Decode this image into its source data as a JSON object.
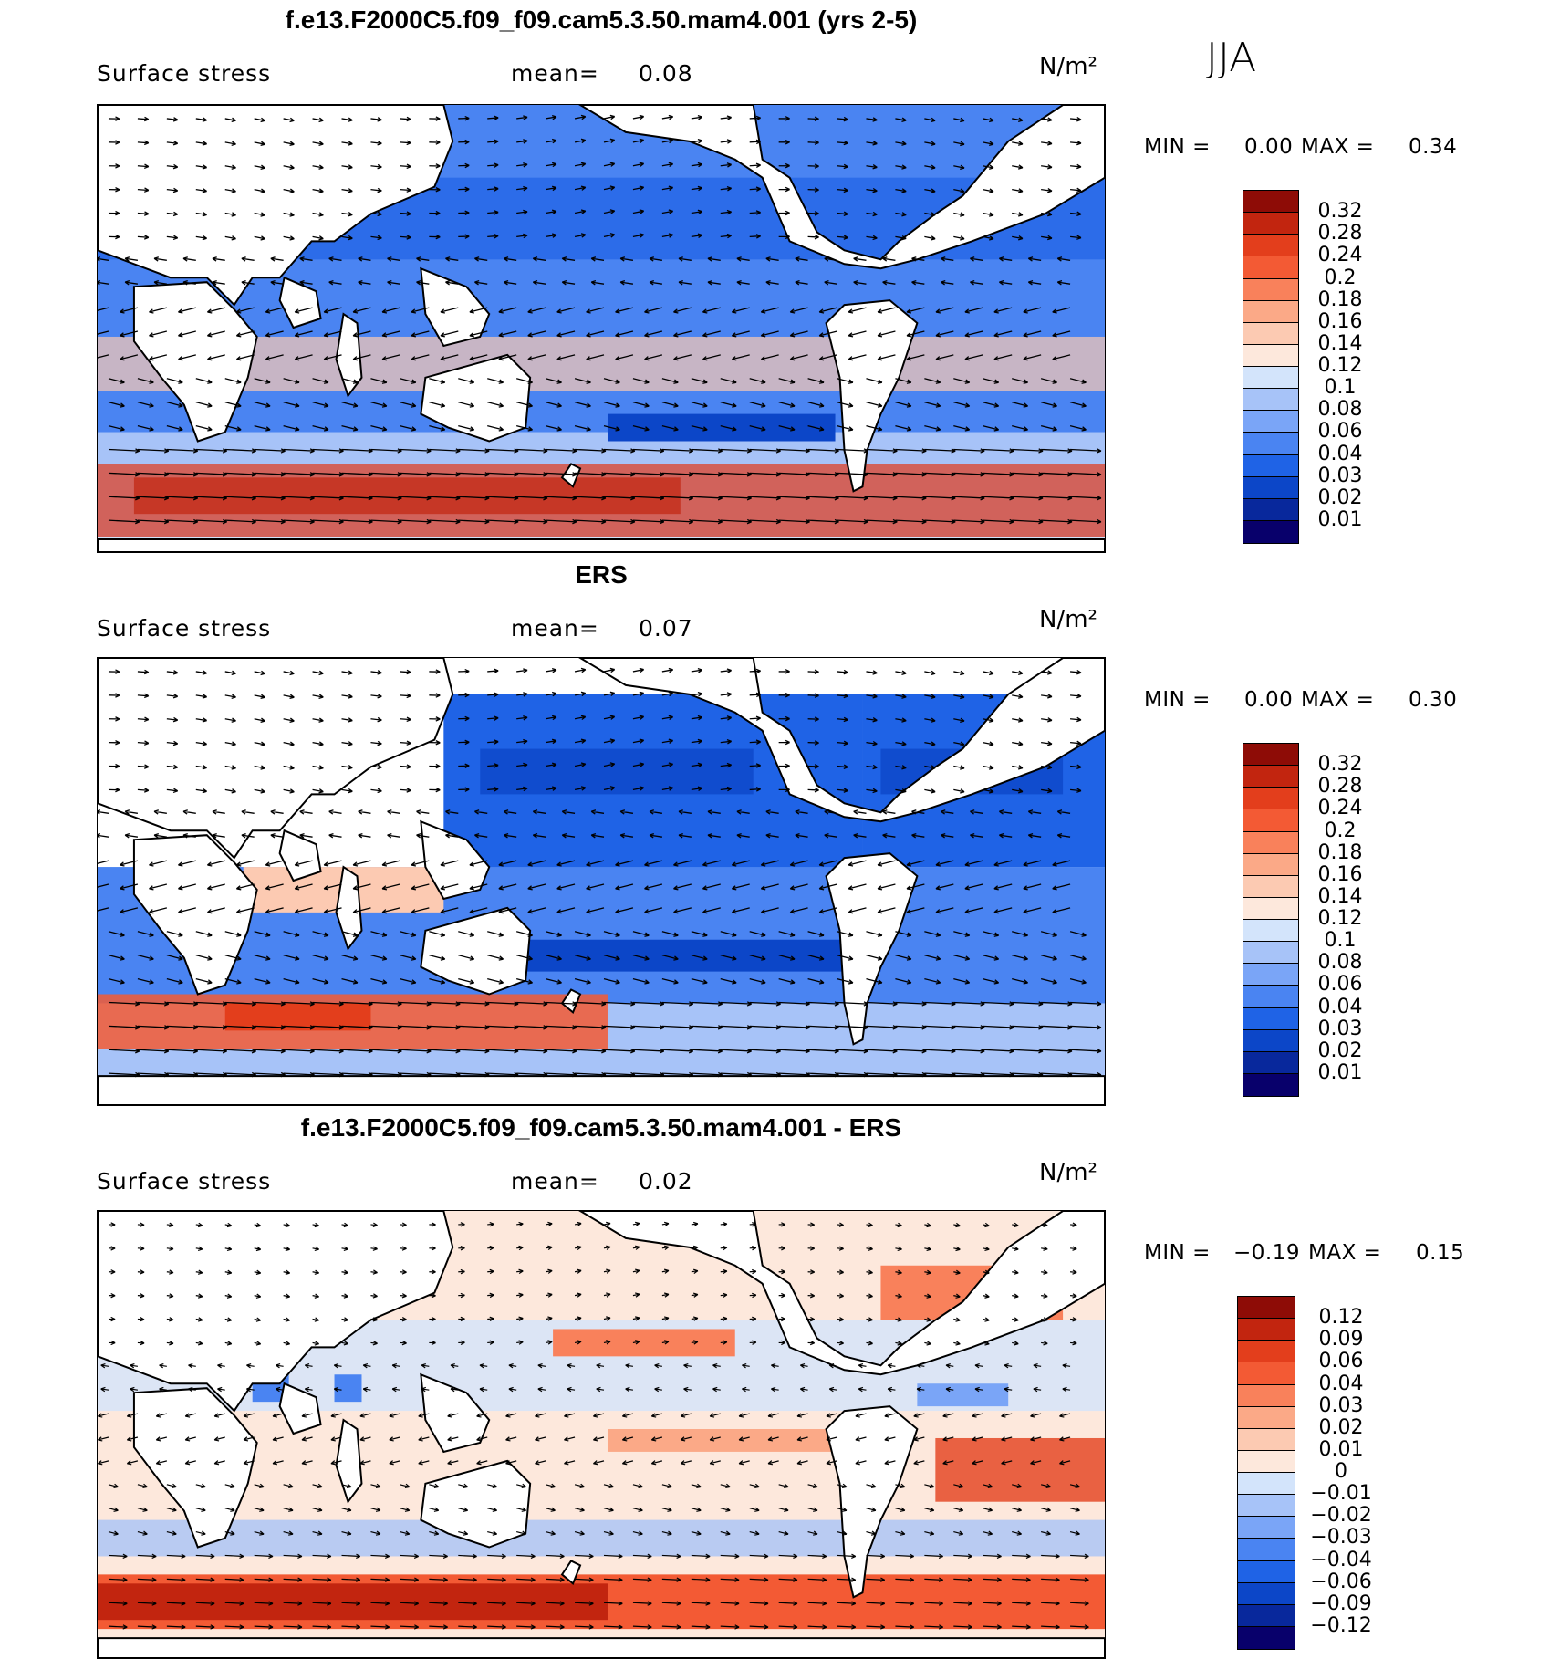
{
  "season": "JJA",
  "unit_label": "N/m²",
  "colors": {
    "abs_scale": [
      "#08006b",
      "#08289c",
      "#0c46c8",
      "#1f63e6",
      "#4a84f2",
      "#7aa5f7",
      "#a7c3f8",
      "#d3e4fb",
      "#fde8dc",
      "#fccab2",
      "#fba987",
      "#f9815b",
      "#f35a34",
      "#e33e1c",
      "#c2250f",
      "#8e0c06"
    ],
    "diff_scale": [
      "#08006b",
      "#08289c",
      "#0c46c8",
      "#1f63e6",
      "#4a84f2",
      "#7aa5f7",
      "#a7c3f8",
      "#d3e4fb",
      "#fde8dc",
      "#fccab2",
      "#fba987",
      "#f9815b",
      "#f35a34",
      "#e33e1c",
      "#c2250f",
      "#8e0c06"
    ],
    "land": "#ffffff"
  },
  "panels": [
    {
      "title": "f.e13.F2000C5.f09_f09.cam5.3.50.mam4.001 (yrs 2-5)",
      "variable": "Surface stress",
      "mean_label": "mean=",
      "mean_value": "0.08",
      "min_label": "MIN =",
      "min_value": "0.00",
      "max_label": "MAX =",
      "max_value": "0.34",
      "colorbar_labels": [
        "0.32",
        "0.28",
        "0.24",
        "0.2",
        "0.18",
        "0.16",
        "0.14",
        "0.12",
        "0.1",
        "0.08",
        "0.06",
        "0.04",
        "0.03",
        "0.02",
        "0.01"
      ]
    },
    {
      "title": "ERS",
      "variable": "Surface stress",
      "mean_label": "mean=",
      "mean_value": "0.07",
      "min_label": "MIN =",
      "min_value": "0.00",
      "max_label": "MAX =",
      "max_value": "0.30",
      "colorbar_labels": [
        "0.32",
        "0.28",
        "0.24",
        "0.2",
        "0.18",
        "0.16",
        "0.14",
        "0.12",
        "0.1",
        "0.08",
        "0.06",
        "0.04",
        "0.03",
        "0.02",
        "0.01"
      ]
    },
    {
      "title": "f.e13.F2000C5.f09_f09.cam5.3.50.mam4.001 - ERS",
      "variable": "Surface stress",
      "mean_label": "mean=",
      "mean_value": "0.02",
      "min_label": "MIN =",
      "min_value": "−0.19",
      "max_label": "MAX =",
      "max_value": "0.15",
      "colorbar_labels": [
        "0.12",
        "0.09",
        "0.06",
        "0.04",
        "0.03",
        "0.02",
        "0.01",
        "0",
        "−0.01",
        "−0.02",
        "−0.03",
        "−0.04",
        "−0.06",
        "−0.09",
        "−0.12"
      ]
    }
  ]
}
